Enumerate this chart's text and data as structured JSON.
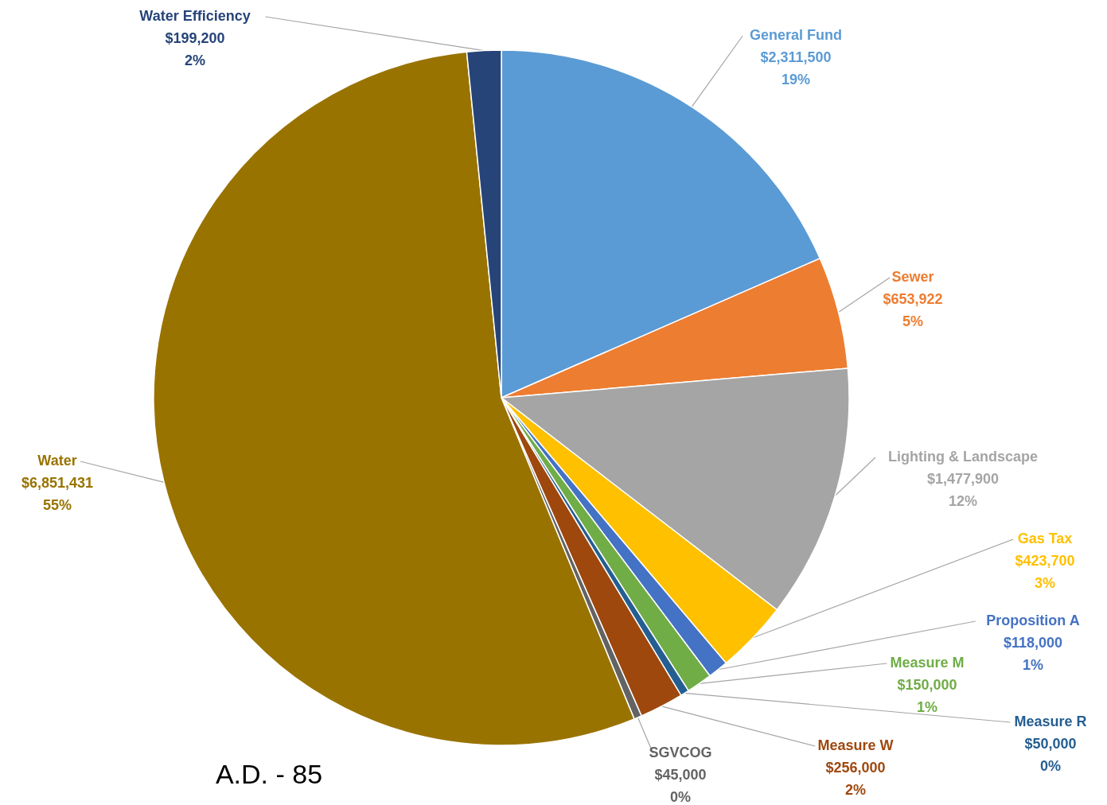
{
  "chart_data": {
    "type": "pie",
    "categories": [
      "General Fund",
      "Sewer",
      "Lighting & Landscape",
      "Gas Tax",
      "Proposition A",
      "Measure M",
      "Measure R",
      "Measure W",
      "SGVCOG",
      "Water",
      "Water Efficiency"
    ],
    "values": [
      2311500,
      653922,
      1477900,
      423700,
      118000,
      150000,
      50000,
      256000,
      45000,
      6851431,
      199200
    ],
    "value_labels": [
      "$2,311,500\n19%",
      "$653,922\n5%",
      "$1,477,900\n12%",
      "$423,700\n3%",
      "$118,000\n1%",
      "$150,000\n1%",
      "$50,000\n0%",
      "$256,000\n2%",
      "$45,000\n0%",
      "$6,851,431\n55%",
      "$199,200\n2%"
    ],
    "colors": [
      "#5b9bd5",
      "#ed7d31",
      "#a5a5a5",
      "#ffc000",
      "#4472c4",
      "#70ad47",
      "#255e91",
      "#9e480e",
      "#636363",
      "#997300",
      "#264478"
    ],
    "annotations": [
      "A.D. - 85"
    ]
  }
}
